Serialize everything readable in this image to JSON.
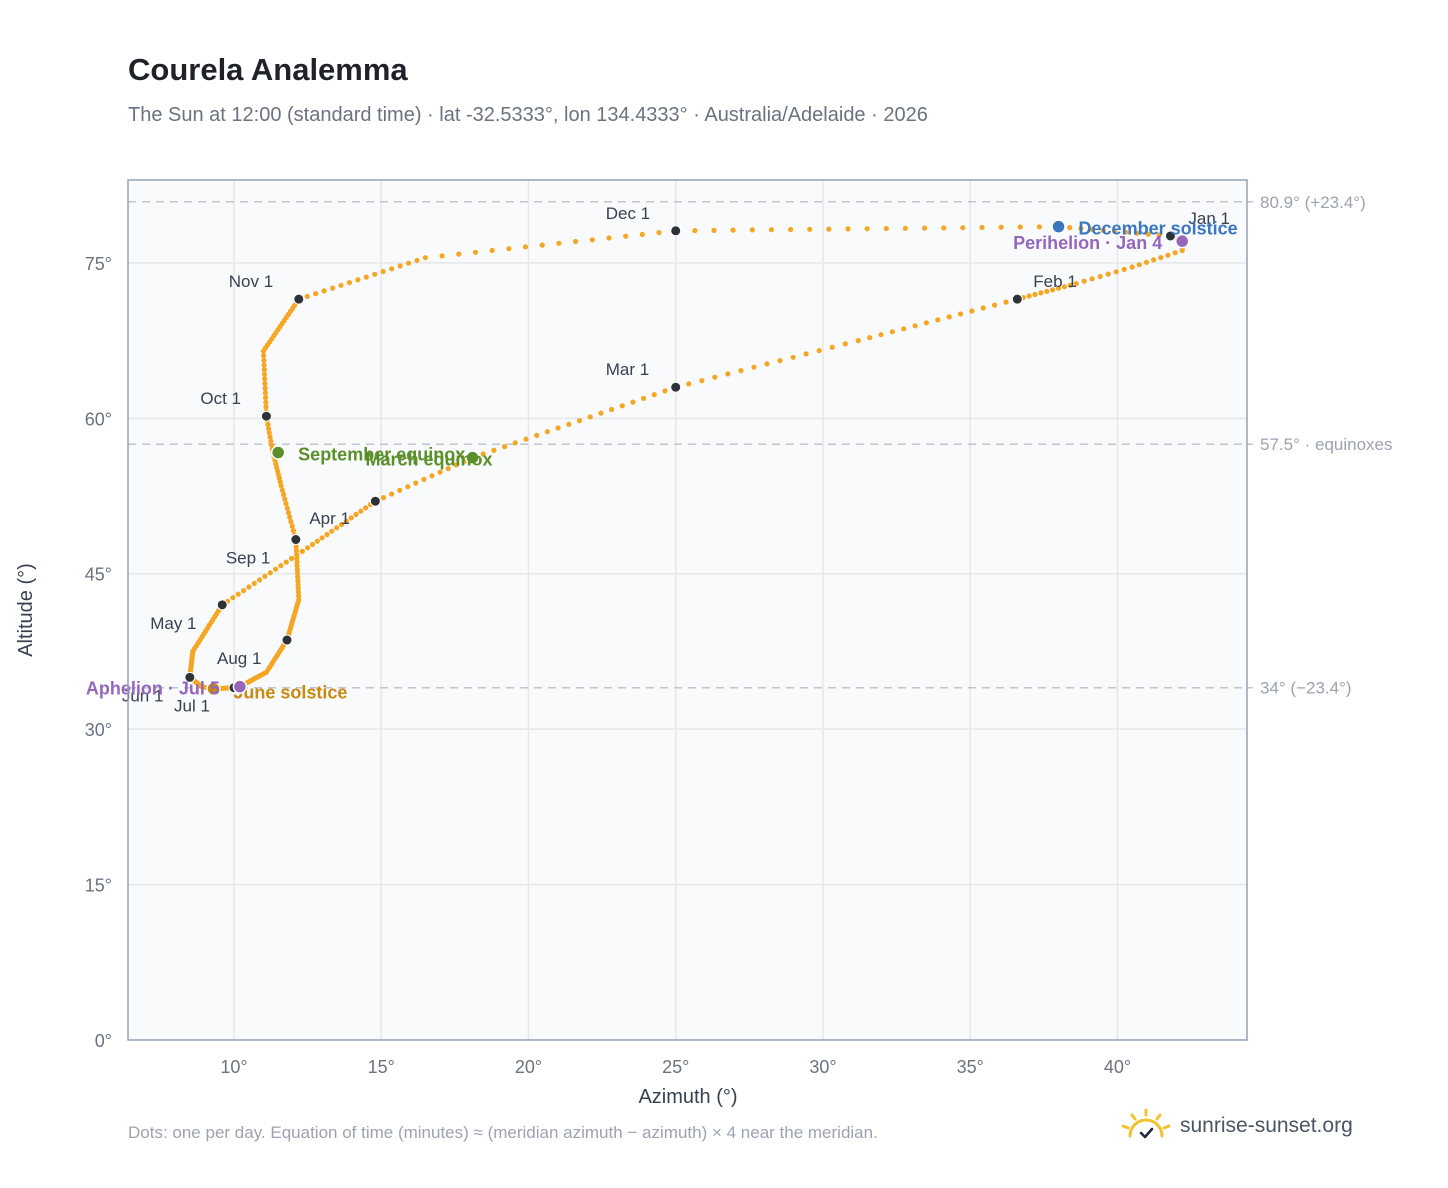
{
  "header": {
    "title": "Courela Analemma",
    "subtitle": "The Sun at 12:00 (standard time) · lat -32.5333°, lon 134.4333° · Australia/Adelaide · 2026"
  },
  "footer": {
    "note": "Dots: one per day. Equation of time (minutes) ≈ (meridian azimuth − azimuth) × 4 near the meridian.",
    "brand": "sunrise-sunset.org"
  },
  "chart_data": {
    "type": "scatter",
    "xlabel": "Azimuth (°)",
    "ylabel": "Altitude (°)",
    "xlim": [
      6.4,
      44.4
    ],
    "ylim": [
      0,
      83
    ],
    "xticks": [
      10,
      15,
      20,
      25,
      30,
      35,
      40
    ],
    "xtick_labels": [
      "10°",
      "15°",
      "20°",
      "25°",
      "30°",
      "35°",
      "40°"
    ],
    "yticks": [
      0,
      15,
      30,
      45,
      60,
      75
    ],
    "ytick_labels": [
      "0°",
      "15°",
      "30°",
      "45°",
      "60°",
      "75°"
    ],
    "grid": true,
    "reference_lines": [
      {
        "y": 80.9,
        "label": "80.9° (+23.4°)"
      },
      {
        "y": 57.5,
        "label": "57.5° · equinoxes"
      },
      {
        "y": 34.0,
        "label": "34° (−23.4°)"
      }
    ],
    "path_color": "#f5a623",
    "analemma_keypoints": [
      {
        "day": 1,
        "az": 41.8,
        "alt": 77.6
      },
      {
        "day": 4,
        "az": 42.2,
        "alt": 77.1
      },
      {
        "day": 8,
        "az": 42.2,
        "alt": 76.2
      },
      {
        "day": 15,
        "az": 40.5,
        "alt": 74.6
      },
      {
        "day": 22,
        "az": 38.6,
        "alt": 73.0
      },
      {
        "day": 32,
        "az": 36.6,
        "alt": 71.5
      },
      {
        "day": 46,
        "az": 31.2,
        "alt": 67.5
      },
      {
        "day": 60,
        "az": 25.0,
        "alt": 63.0
      },
      {
        "day": 79,
        "az": 18.1,
        "alt": 56.2
      },
      {
        "day": 91,
        "az": 14.8,
        "alt": 52.0
      },
      {
        "day": 105,
        "az": 12.5,
        "alt": 47.5
      },
      {
        "day": 121,
        "az": 9.6,
        "alt": 42.0
      },
      {
        "day": 137,
        "az": 8.6,
        "alt": 37.5
      },
      {
        "day": 152,
        "az": 8.5,
        "alt": 35.0
      },
      {
        "day": 165,
        "az": 8.9,
        "alt": 34.1
      },
      {
        "day": 172,
        "az": 9.3,
        "alt": 33.9
      },
      {
        "day": 182,
        "az": 10.0,
        "alt": 34.0
      },
      {
        "day": 186,
        "az": 10.2,
        "alt": 34.1
      },
      {
        "day": 200,
        "az": 11.1,
        "alt": 35.5
      },
      {
        "day": 213,
        "az": 11.8,
        "alt": 38.6
      },
      {
        "day": 228,
        "az": 12.2,
        "alt": 42.5
      },
      {
        "day": 244,
        "az": 12.1,
        "alt": 48.3
      },
      {
        "day": 256,
        "az": 11.6,
        "alt": 53.5
      },
      {
        "day": 266,
        "az": 11.3,
        "alt": 57.0
      },
      {
        "day": 274,
        "az": 11.1,
        "alt": 60.2
      },
      {
        "day": 288,
        "az": 11.0,
        "alt": 66.5
      },
      {
        "day": 305,
        "az": 12.2,
        "alt": 71.5
      },
      {
        "day": 320,
        "az": 16.5,
        "alt": 75.5
      },
      {
        "day": 335,
        "az": 25.0,
        "alt": 78.1
      },
      {
        "day": 355,
        "az": 38.0,
        "alt": 78.5
      },
      {
        "day": 365,
        "az": 41.8,
        "alt": 77.6
      }
    ],
    "month_markers": [
      {
        "label": "Jan 1",
        "az": 41.8,
        "alt": 77.6,
        "dx": 18,
        "dy": -12
      },
      {
        "label": "Feb 1",
        "az": 36.6,
        "alt": 71.5,
        "dx": 16,
        "dy": -12
      },
      {
        "label": "Mar 1",
        "az": 25.0,
        "alt": 63.0,
        "dx": -70,
        "dy": -12
      },
      {
        "label": "Apr 1",
        "az": 14.8,
        "alt": 52.0,
        "dx": -66,
        "dy": 23
      },
      {
        "label": "May 1",
        "az": 9.6,
        "alt": 42.0,
        "dx": -72,
        "dy": 24
      },
      {
        "label": "Jun 1",
        "az": 8.5,
        "alt": 35.0,
        "dx": -68,
        "dy": 24
      },
      {
        "label": "Jul 1",
        "az": 10.0,
        "alt": 34.0,
        "dx": -60,
        "dy": 24
      },
      {
        "label": "Aug 1",
        "az": 11.8,
        "alt": 38.6,
        "dx": -70,
        "dy": 24
      },
      {
        "label": "Sep 1",
        "az": 12.1,
        "alt": 48.3,
        "dx": -70,
        "dy": 24
      },
      {
        "label": "Oct 1",
        "az": 11.1,
        "alt": 60.2,
        "dx": -66,
        "dy": -12
      },
      {
        "label": "Nov 1",
        "az": 12.2,
        "alt": 71.5,
        "dx": -70,
        "dy": -12
      },
      {
        "label": "Dec 1",
        "az": 25.0,
        "alt": 78.1,
        "dx": -70,
        "dy": -12
      }
    ],
    "events": [
      {
        "label": "December solstice",
        "az": 38.0,
        "alt": 78.5,
        "color": "#3b76c0",
        "anchor": "start",
        "dx": 20,
        "dy": 8
      },
      {
        "label": "Perihelion · Jan 4",
        "az": 42.2,
        "alt": 77.1,
        "color": "#9467bd",
        "anchor": "end",
        "dx": -20,
        "dy": 8
      },
      {
        "label": "September equinox",
        "az": 11.5,
        "alt": 56.7,
        "color": "#5a8f29",
        "anchor": "start",
        "dx": 20,
        "dy": 8
      },
      {
        "label": "March equinox",
        "az": 18.1,
        "alt": 56.2,
        "color": "#5a8f29",
        "anchor": "end",
        "dx": 20,
        "dy": 8
      },
      {
        "label": "June solstice",
        "az": 9.3,
        "alt": 33.9,
        "color": "#c98a10",
        "anchor": "start",
        "dx": 20,
        "dy": 10
      },
      {
        "label": "Aphelion · Jul 5",
        "az": 10.2,
        "alt": 34.1,
        "color": "#9467bd",
        "anchor": "end",
        "dx": -20,
        "dy": 8
      }
    ]
  }
}
